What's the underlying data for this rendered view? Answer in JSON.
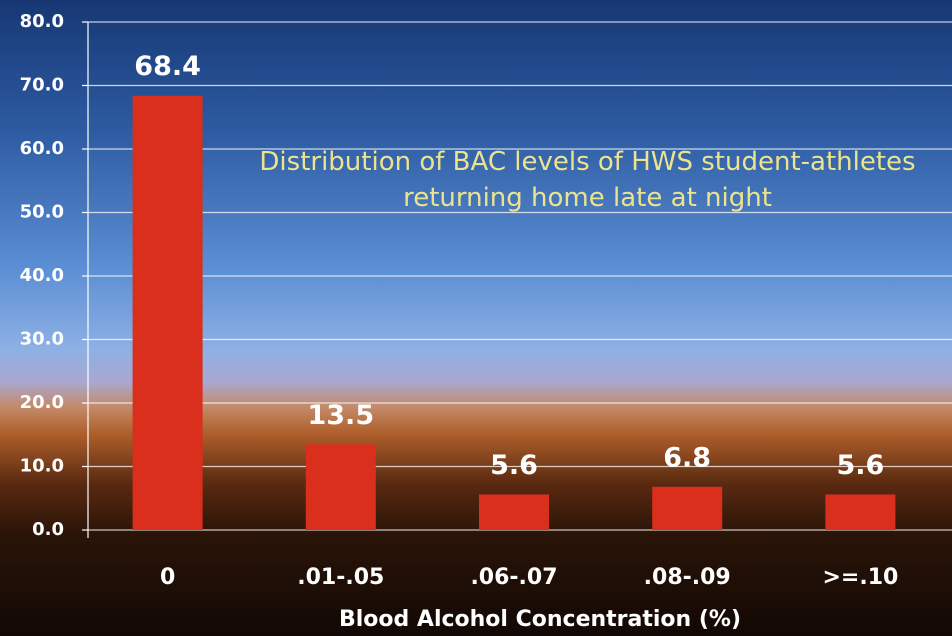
{
  "chart_data": {
    "type": "bar",
    "title": "Distribution of BAC levels of HWS student-athletes returning home late at night",
    "xlabel": "Blood Alcohol Concentration (%)",
    "categories": [
      "0",
      ".01-.05",
      ".06-.07",
      ".08-.09",
      ">=.10"
    ],
    "values": [
      68.4,
      13.5,
      5.6,
      6.8,
      5.6
    ],
    "color": "#d92f1c",
    "ylim": [
      0,
      80
    ],
    "yticks": [
      {
        "value": 0,
        "label": "0.0"
      },
      {
        "value": 10,
        "label": "10.0"
      },
      {
        "value": 20,
        "label": "20.0"
      },
      {
        "value": 30,
        "label": "30.0"
      },
      {
        "value": 40,
        "label": "40.0"
      },
      {
        "value": 50,
        "label": "50.0"
      },
      {
        "value": 60,
        "label": "60.0"
      },
      {
        "value": 70,
        "label": "70.0"
      },
      {
        "value": 80,
        "label": "80.0"
      }
    ],
    "grid": true
  }
}
